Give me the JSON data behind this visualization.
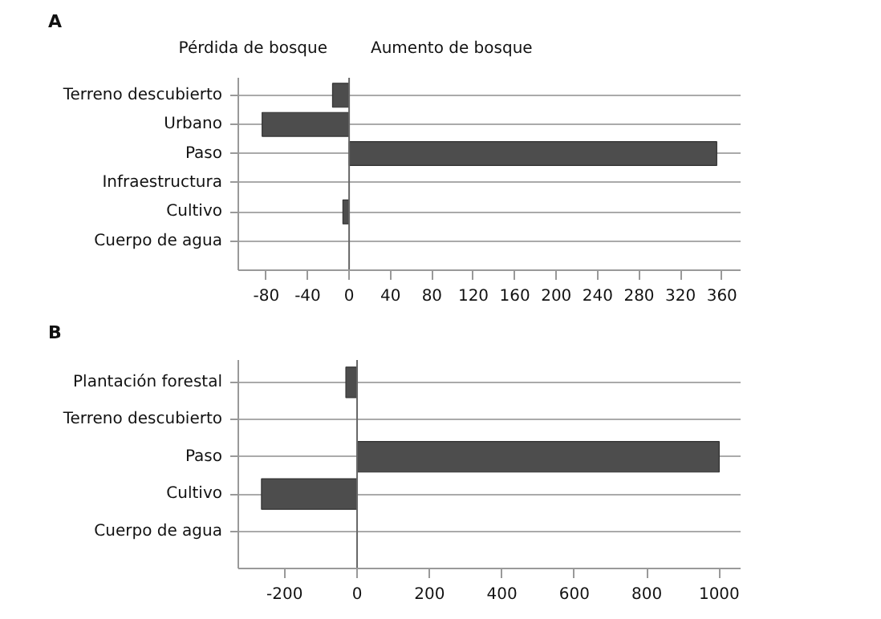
{
  "chart_data": [
    {
      "type": "bar",
      "orientation": "horizontal",
      "title": "A",
      "annotations": [
        "Pérdida de bosque",
        "Aumento de bosque"
      ],
      "categories": [
        "Terreno descubierto",
        "Urbano",
        "Paso",
        "Infraestructura",
        "Cultivo",
        "Cuerpo de agua"
      ],
      "values": [
        -16,
        -84,
        355,
        null,
        -6,
        null
      ],
      "color": "#4d4d4d",
      "xlim": [
        -107,
        378
      ],
      "xticks": [
        -80,
        -40,
        0,
        40,
        80,
        120,
        160,
        200,
        240,
        280,
        320,
        360
      ],
      "grid": "y"
    },
    {
      "type": "bar",
      "orientation": "horizontal",
      "title": "B",
      "categories": [
        "Plantación forestal",
        "Terreno descubierto",
        "Paso",
        "Cultivo",
        "Cuerpo de agua"
      ],
      "values": [
        -31,
        null,
        1000,
        -264,
        null
      ],
      "color": "#4d4d4d",
      "xlim": [
        -328,
        1059
      ],
      "xticks": [
        -200,
        0,
        200,
        400,
        600,
        800,
        1000
      ],
      "grid": "y"
    }
  ]
}
